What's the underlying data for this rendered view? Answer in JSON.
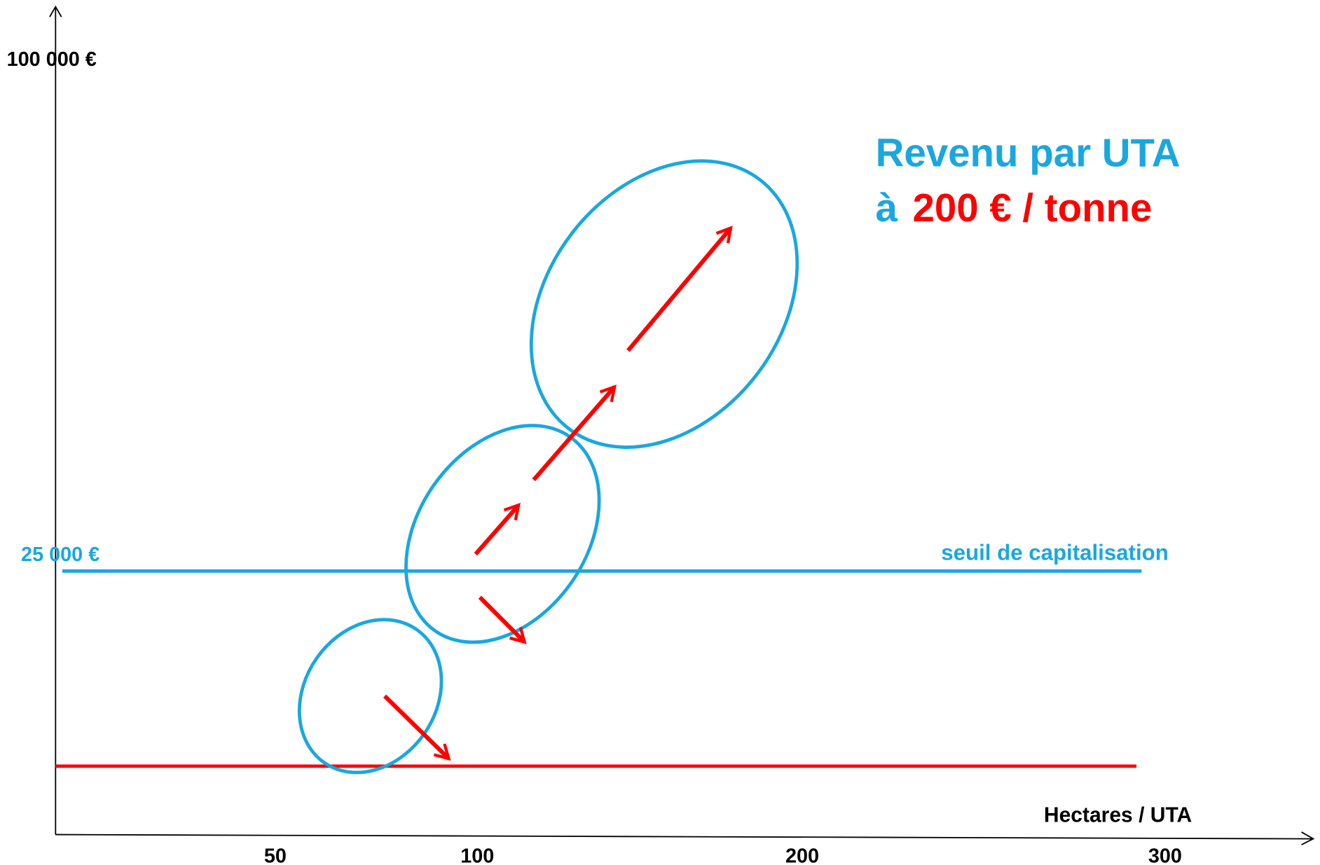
{
  "title": {
    "line1": "Revenu par UTA",
    "line2_prefix": "à",
    "line2_highlight": "200 € / tonne"
  },
  "axes": {
    "y_labels": [
      "100 000 €",
      "25 000 €"
    ],
    "x_labels": [
      "50",
      "100",
      "200",
      "300"
    ],
    "x_title": "Hectares / UTA"
  },
  "threshold": {
    "label": "seuil de capitalisation"
  }
}
